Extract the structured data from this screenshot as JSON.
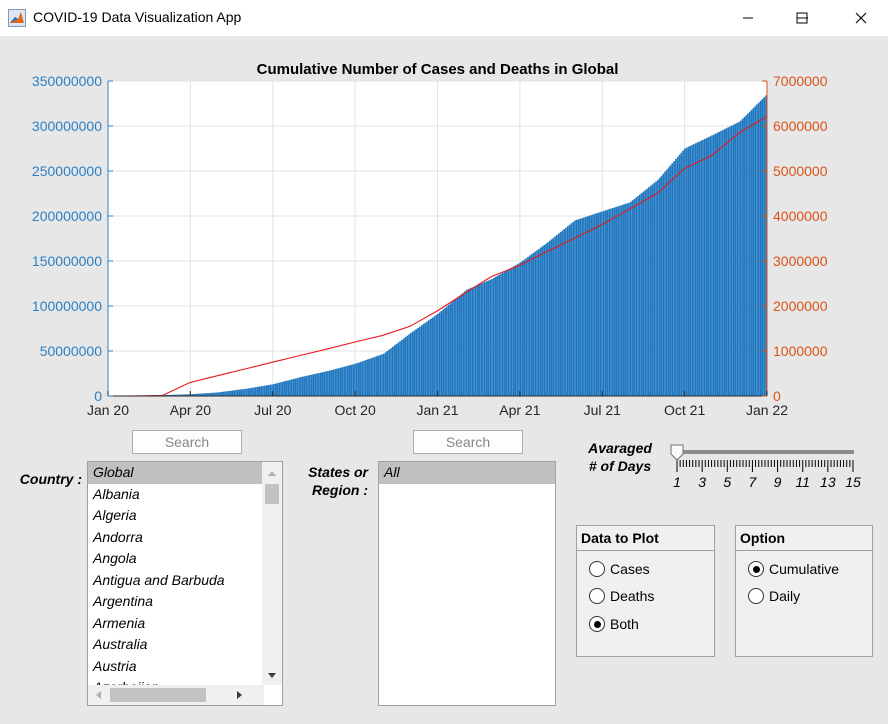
{
  "window": {
    "title": "COVID-19 Data Visualization App",
    "minimize_glyph": "—",
    "maximize_glyph": "☐",
    "close_glyph": "✕"
  },
  "colors": {
    "left_axis": "#2c7fc3",
    "right_axis": "#d95319",
    "bars": "#1f77bf",
    "line": "#e8161e"
  },
  "chart_data": {
    "type": "bar",
    "title": "Cumulative Number of Cases and Deaths in Global",
    "xlabel": "",
    "ylabel": "",
    "x_ticks": [
      "Jan 20",
      "Apr 20",
      "Jul 20",
      "Oct 20",
      "Jan 21",
      "Apr 21",
      "Jul 21",
      "Oct 21",
      "Jan 22"
    ],
    "y_left_ticks": [
      "0",
      "50000000",
      "100000000",
      "150000000",
      "200000000",
      "250000000",
      "300000000",
      "350000000"
    ],
    "y_right_ticks": [
      "0",
      "1000000",
      "2000000",
      "3000000",
      "4000000",
      "5000000",
      "6000000",
      "7000000"
    ],
    "ylim_left": [
      0,
      350000000
    ],
    "ylim_right": [
      0,
      7000000
    ],
    "xlim": [
      "2020-01-01",
      "2022-01-01"
    ],
    "grid": true,
    "series": [
      {
        "kind": "bar",
        "axis": "left",
        "x": [
          "2020-01-22",
          "2020-03-01",
          "2020-04-01",
          "2020-05-01",
          "2020-06-01",
          "2020-07-01",
          "2020-08-01",
          "2020-09-01",
          "2020-10-01",
          "2020-11-01",
          "2020-12-01",
          "2021-01-01",
          "2021-02-01",
          "2021-03-01",
          "2021-04-01",
          "2021-05-01",
          "2021-06-01",
          "2021-07-01",
          "2021-08-01",
          "2021-09-01",
          "2021-10-01",
          "2021-11-01",
          "2021-12-01",
          "2021-12-31"
        ],
        "values": [
          0,
          1000000,
          2000000,
          4000000,
          8000000,
          13000000,
          21000000,
          28000000,
          36000000,
          47000000,
          70000000,
          92000000,
          118000000,
          130000000,
          148000000,
          170000000,
          195000000,
          205000000,
          215000000,
          240000000,
          275000000,
          290000000,
          305000000,
          335000000
        ]
      },
      {
        "kind": "line",
        "axis": "right",
        "x": [
          "2020-01-22",
          "2020-03-01",
          "2020-04-01",
          "2020-05-01",
          "2020-06-01",
          "2020-07-01",
          "2020-08-01",
          "2020-09-01",
          "2020-10-01",
          "2020-11-01",
          "2020-12-01",
          "2021-01-01",
          "2021-02-01",
          "2021-03-01",
          "2021-04-01",
          "2021-05-01",
          "2021-06-01",
          "2021-07-01",
          "2021-08-01",
          "2021-09-01",
          "2021-10-01",
          "2021-11-01",
          "2021-12-01",
          "2021-12-31"
        ],
        "values": [
          0,
          10000,
          300000,
          450000,
          600000,
          750000,
          900000,
          1050000,
          1200000,
          1350000,
          1550000,
          1900000,
          2300000,
          2650000,
          2900000,
          3200000,
          3500000,
          3800000,
          4150000,
          4500000,
          5050000,
          5350000,
          5850000,
          6200000
        ]
      }
    ]
  },
  "country": {
    "label": "Country :",
    "search_label": "Search",
    "items": [
      "Global",
      "Albania",
      "Algeria",
      "Andorra",
      "Angola",
      "Antigua and Barbuda",
      "Argentina",
      "Armenia",
      "Australia",
      "Austria",
      "Azerbaijan"
    ],
    "selected": "Global"
  },
  "states": {
    "label_line1": "States or",
    "label_line2": "Region :",
    "search_label": "Search",
    "items": [
      "All"
    ],
    "selected": "All"
  },
  "slider": {
    "label_line1": "Avaraged",
    "label_line2": "# of Days",
    "min": 1,
    "max": 15,
    "value": 1,
    "tick_labels": [
      "1",
      "3",
      "5",
      "7",
      "9",
      "11",
      "13",
      "15"
    ]
  },
  "data_to_plot": {
    "title": "Data to Plot",
    "options": [
      "Cases",
      "Deaths",
      "Both"
    ],
    "selected": "Both"
  },
  "option": {
    "title": "Option",
    "options": [
      "Cumulative",
      "Daily"
    ],
    "selected": "Cumulative"
  }
}
